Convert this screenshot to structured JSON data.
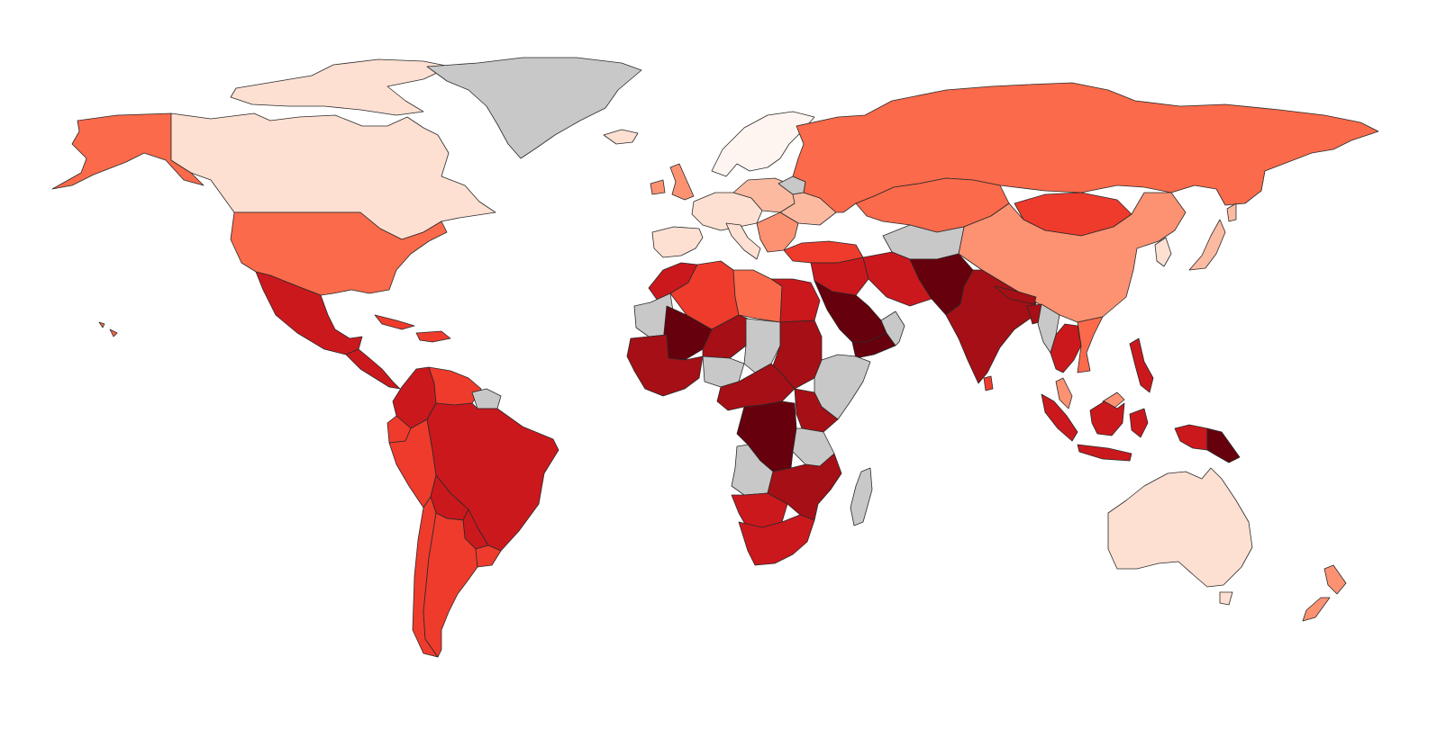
{
  "palette": {
    "no_data": "#c8c8c8",
    "levels": [
      "#fff5f0",
      "#fee0d2",
      "#fcbba1",
      "#fc9272",
      "#fb6a4a",
      "#ef3b2c",
      "#cb181d",
      "#a50f15",
      "#67000d"
    ],
    "border": "#2a2a2a",
    "background": "#ffffff"
  },
  "regions": [
    {
      "name": "alaska",
      "level": 4
    },
    {
      "name": "canada",
      "level": 1
    },
    {
      "name": "canadian-arctic-islands",
      "level": 1
    },
    {
      "name": "greenland",
      "level": "no_data"
    },
    {
      "name": "iceland",
      "level": 1
    },
    {
      "name": "usa",
      "level": 4
    },
    {
      "name": "mexico",
      "level": 6
    },
    {
      "name": "central-america",
      "level": 6
    },
    {
      "name": "caribbean",
      "level": 5
    },
    {
      "name": "hawaii",
      "level": 4
    },
    {
      "name": "colombia",
      "level": 6
    },
    {
      "name": "venezuela",
      "level": 5
    },
    {
      "name": "guianas",
      "level": "no_data"
    },
    {
      "name": "ecuador",
      "level": 5
    },
    {
      "name": "peru",
      "level": 5
    },
    {
      "name": "brazil",
      "level": 6
    },
    {
      "name": "bolivia",
      "level": 6
    },
    {
      "name": "paraguay",
      "level": 6
    },
    {
      "name": "chile",
      "level": 5
    },
    {
      "name": "argentina",
      "level": 5
    },
    {
      "name": "uruguay",
      "level": 5
    },
    {
      "name": "uk-ireland",
      "level": 3
    },
    {
      "name": "scandinavia",
      "level": 0
    },
    {
      "name": "western-europe",
      "level": 1
    },
    {
      "name": "iberia",
      "level": 1
    },
    {
      "name": "italy",
      "level": 1
    },
    {
      "name": "central-europe",
      "level": 2
    },
    {
      "name": "eastern-europe",
      "level": 2
    },
    {
      "name": "belarus",
      "level": "no_data"
    },
    {
      "name": "balkans",
      "level": 3
    },
    {
      "name": "russia",
      "level": 4
    },
    {
      "name": "kazakhstan",
      "level": 4
    },
    {
      "name": "mongolia",
      "level": 5
    },
    {
      "name": "china",
      "level": 3
    },
    {
      "name": "korea",
      "level": 1
    },
    {
      "name": "japan",
      "level": 2
    },
    {
      "name": "turkey",
      "level": 5
    },
    {
      "name": "central-asia",
      "level": "no_data"
    },
    {
      "name": "iran",
      "level": 6
    },
    {
      "name": "afghanistan-pakistan",
      "level": 8
    },
    {
      "name": "india",
      "level": 7
    },
    {
      "name": "nepal-bhutan",
      "level": 7
    },
    {
      "name": "bangladesh",
      "level": 7
    },
    {
      "name": "myanmar",
      "level": "no_data"
    },
    {
      "name": "thailand",
      "level": 6
    },
    {
      "name": "vietnam",
      "level": 4
    },
    {
      "name": "malaysia",
      "level": 3
    },
    {
      "name": "sumatra",
      "level": 6
    },
    {
      "name": "java",
      "level": 6
    },
    {
      "name": "borneo",
      "level": 6
    },
    {
      "name": "sulawesi",
      "level": 6
    },
    {
      "name": "philippines",
      "level": 6
    },
    {
      "name": "png",
      "level": 8
    },
    {
      "name": "west-papua",
      "level": 6
    },
    {
      "name": "sri-lanka",
      "level": 5
    },
    {
      "name": "iraq-syria",
      "level": 6
    },
    {
      "name": "saudi-arabia",
      "level": 8
    },
    {
      "name": "yemen",
      "level": 8
    },
    {
      "name": "oman-uae",
      "level": "no_data"
    },
    {
      "name": "egypt",
      "level": 6
    },
    {
      "name": "libya",
      "level": 4
    },
    {
      "name": "algeria",
      "level": 5
    },
    {
      "name": "morocco",
      "level": 6
    },
    {
      "name": "mauritania",
      "level": "no_data"
    },
    {
      "name": "mali",
      "level": 8
    },
    {
      "name": "niger",
      "level": 7
    },
    {
      "name": "chad",
      "level": "no_data"
    },
    {
      "name": "sudan",
      "level": 7
    },
    {
      "name": "west-africa",
      "level": 7
    },
    {
      "name": "nigeria",
      "level": "no_data"
    },
    {
      "name": "ethiopia-somalia",
      "level": "no_data"
    },
    {
      "name": "central-africa",
      "level": 7
    },
    {
      "name": "drc",
      "level": 8
    },
    {
      "name": "kenya",
      "level": 7
    },
    {
      "name": "tanzania",
      "level": "no_data"
    },
    {
      "name": "angola",
      "level": "no_data"
    },
    {
      "name": "zambia-mozambique",
      "level": 7
    },
    {
      "name": "namibia-botswana",
      "level": 6
    },
    {
      "name": "south-africa",
      "level": 6
    },
    {
      "name": "madagascar",
      "level": "no_data"
    },
    {
      "name": "australia",
      "level": 1
    },
    {
      "name": "tasmania",
      "level": 1
    },
    {
      "name": "new-zealand",
      "level": 3
    }
  ]
}
